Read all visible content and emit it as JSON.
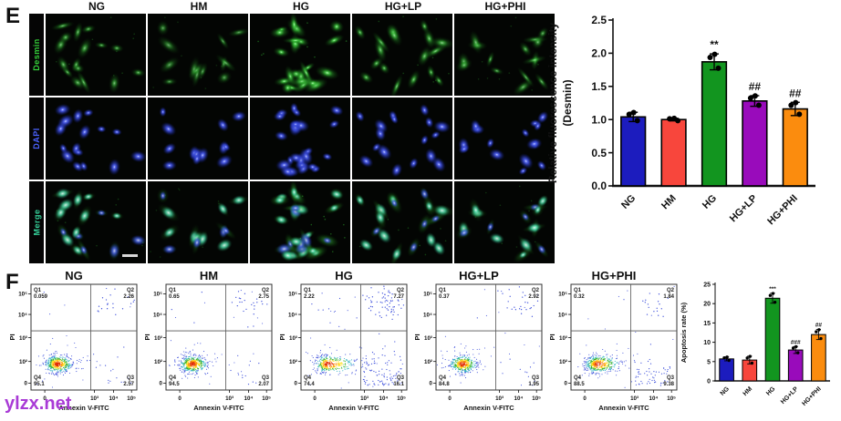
{
  "panel_e": {
    "label": "E",
    "column_titles": [
      "NG",
      "HM",
      "HG",
      "HG+LP",
      "HG+PHI"
    ],
    "row_labels": [
      {
        "text": "Desmin",
        "color": "#35d13a"
      },
      {
        "text": "DAPI",
        "color": "#4b62ff"
      },
      {
        "text": "Merge",
        "color": "#35d19a"
      }
    ]
  },
  "panel_f": {
    "label": "F",
    "xlabel": "Annexin V-FITC",
    "ylabel": "PI",
    "x_ticks": [
      "0",
      "10³",
      "10⁴",
      "10⁵"
    ],
    "y_ticks": [
      "10⁵",
      "10⁴",
      "10³",
      "10²",
      "0"
    ],
    "quadrant_labels": [
      "Q1",
      "Q2",
      "Q3",
      "Q4"
    ],
    "plots": [
      {
        "title": "NG",
        "q1": "0.059",
        "q2": "2.26",
        "q3": "2.57",
        "q4": "95.1"
      },
      {
        "title": "HM",
        "q1": "0.65",
        "q2": "2.75",
        "q3": "2.07",
        "q4": "94.5"
      },
      {
        "title": "HG",
        "q1": "2.22",
        "q2": "7.27",
        "q3": "16.1",
        "q4": "74.4"
      },
      {
        "title": "HG+LP",
        "q1": "0.37",
        "q2": "2.92",
        "q3": "1.95",
        "q4": "84.8"
      },
      {
        "title": "HG+PHI",
        "q1": "0.32",
        "q2": "1.84",
        "q3": "9.38",
        "q4": "88.5"
      }
    ]
  },
  "watermark": "ylzx.net",
  "colors": {
    "bar_blue": "#1c1cbe",
    "bar_red": "#f8463c",
    "bar_green": "#12951f",
    "bar_purple": "#990bbb",
    "bar_orange": "#fb8c0e"
  },
  "chart_data": [
    {
      "type": "bar",
      "panel": "E",
      "categories": [
        "NG",
        "HM",
        "HG",
        "HG+LP",
        "HG+PHI"
      ],
      "values": [
        1.04,
        1.0,
        1.87,
        1.28,
        1.16
      ],
      "errors": [
        0.07,
        0.02,
        0.12,
        0.08,
        0.1
      ],
      "annotations": [
        "",
        "",
        "**",
        "##",
        "##"
      ],
      "bar_colors": [
        "#1c1cbe",
        "#f8463c",
        "#12951f",
        "#990bbb",
        "#fb8c0e"
      ],
      "ylabel_line1": "Relative fluorescence intensity",
      "ylabel_line2": "(Desmin)",
      "ylim": [
        0,
        2.5
      ],
      "yticks": [
        "0.0",
        "0.5",
        "1.0",
        "1.5",
        "2.0",
        "2.5"
      ],
      "legend": "none",
      "grid": false
    },
    {
      "type": "bar",
      "panel": "F",
      "categories": [
        "NG",
        "HM",
        "HG",
        "HG+LP",
        "HG+PHI"
      ],
      "values": [
        5.7,
        5.4,
        21.4,
        8.0,
        12.0
      ],
      "errors": [
        0.5,
        1.0,
        1.3,
        0.9,
        1.3
      ],
      "annotations": [
        "",
        "",
        "***",
        "###",
        "##"
      ],
      "bar_colors": [
        "#1c1cbe",
        "#f8463c",
        "#12951f",
        "#990bbb",
        "#fb8c0e"
      ],
      "ylabel_line1": "Apoptosis rate (%)",
      "ylabel_line2": "",
      "ylim": [
        0,
        25
      ],
      "yticks": [
        "0",
        "5",
        "10",
        "15",
        "20",
        "25"
      ],
      "legend": "none",
      "grid": false
    },
    {
      "type": "scatter",
      "panel": "F-flow-cytometry",
      "xlabel": "Annexin V-FITC",
      "ylabel": "PI",
      "x_ticks": [
        "0",
        "10³",
        "10⁴",
        "10⁵"
      ],
      "y_ticks": [
        "0",
        "10²",
        "10³",
        "10⁴",
        "10⁵"
      ],
      "plots": [
        {
          "title": "NG",
          "Q1": 0.059,
          "Q2": 2.26,
          "Q3": 2.57,
          "Q4": 95.1
        },
        {
          "title": "HM",
          "Q1": 0.65,
          "Q2": 2.75,
          "Q3": 2.07,
          "Q4": 94.5
        },
        {
          "title": "HG",
          "Q1": 2.22,
          "Q2": 7.27,
          "Q3": 16.1,
          "Q4": 74.4
        },
        {
          "title": "HG+LP",
          "Q1": 0.37,
          "Q2": 2.92,
          "Q3": 1.95,
          "Q4": 84.8
        },
        {
          "title": "HG+PHI",
          "Q1": 0.32,
          "Q2": 1.84,
          "Q3": 9.38,
          "Q4": 88.5
        }
      ]
    }
  ]
}
